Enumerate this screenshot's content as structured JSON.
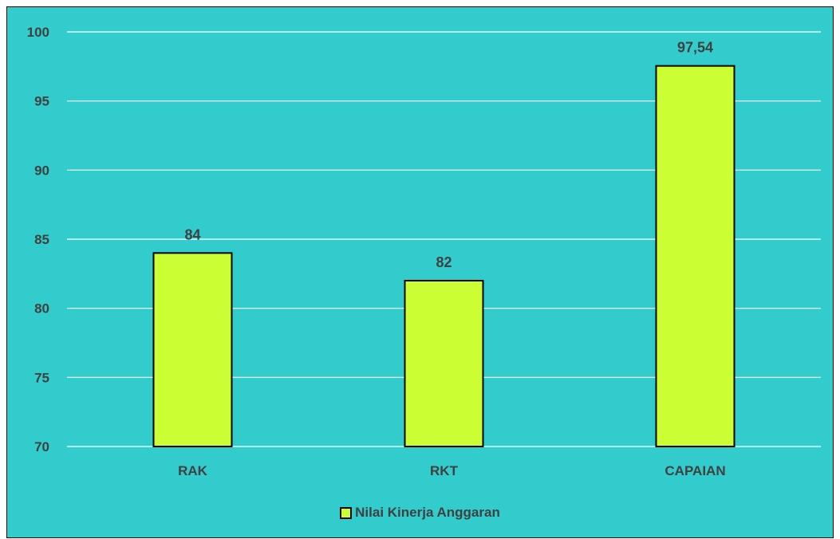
{
  "chart_data": {
    "type": "bar",
    "categories": [
      "RAK",
      "RKT",
      "CAPAIAN"
    ],
    "series": [
      {
        "name": "Nilai Kinerja Anggaran",
        "values": [
          84,
          82,
          97.54
        ]
      }
    ],
    "data_labels": [
      "84",
      "82",
      "97,54"
    ],
    "y_ticks": [
      "70",
      "75",
      "80",
      "85",
      "90",
      "95",
      "100"
    ],
    "ylim": [
      70,
      100
    ],
    "grid": true,
    "legend_position": "bottom",
    "colors": {
      "background": "#33cccc",
      "bar_fill": "#ccff33",
      "bar_stroke": "#000000",
      "gridline": "#ffffff",
      "text": "#404040"
    }
  }
}
